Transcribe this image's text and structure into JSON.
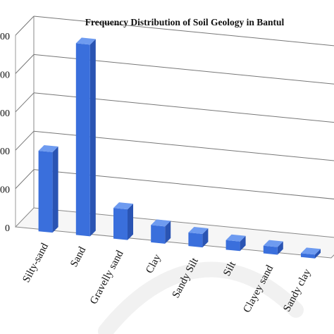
{
  "chart_data": {
    "type": "bar",
    "title": "Frequency Distribution of Soil Geology in Bantul",
    "xlabel": "",
    "ylabel": "",
    "categories": [
      "Silty-sand",
      "Sand",
      "Gravelly sand",
      "Clay",
      "Sandy Silt",
      "Silt",
      "Clayey sand",
      "Sandy clay"
    ],
    "values": [
      210,
      500,
      80,
      45,
      35,
      25,
      20,
      10
    ],
    "ylim": [
      0,
      500
    ],
    "yticks": [
      "0",
      "00",
      "00",
      "00",
      "00",
      "00"
    ],
    "grid": true,
    "legend": "none",
    "bar_color": "#3a6fdc",
    "bar_top_color": "#6e9bf0",
    "bar_side_color": "#2a54b3"
  }
}
